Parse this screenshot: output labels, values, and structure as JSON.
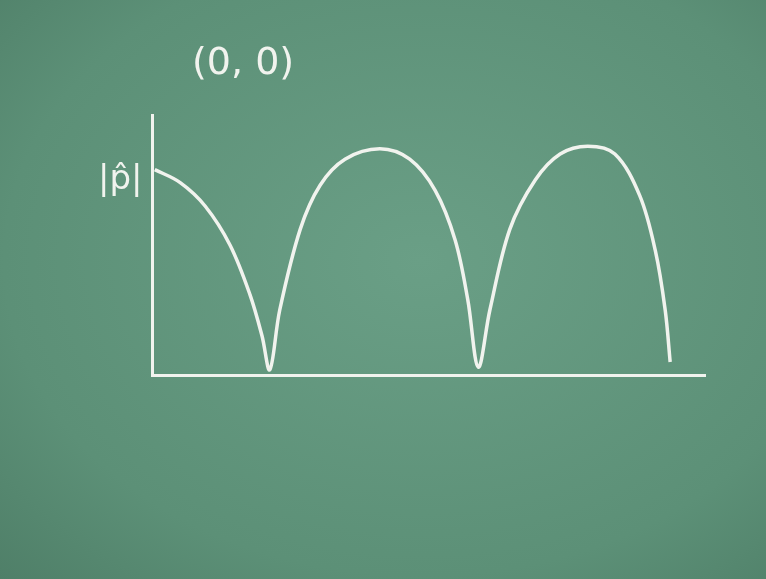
{
  "chart_data": {
    "type": "line",
    "title": "(0, 0)",
    "y_label": "|p̂|",
    "x": [
      0.05,
      0.51,
      0.96,
      1.41,
      1.77,
      1.99,
      2.13,
      2.31,
      2.68,
      3.04,
      3.49,
      4.12,
      4.66,
      5.12,
      5.48,
      5.71,
      5.9,
      6.11,
      6.47,
      6.93,
      7.38,
      7.88,
      8.37,
      8.82,
      9.1,
      9.28,
      9.37
    ],
    "values": [
      0.79,
      0.74,
      0.65,
      0.5,
      0.31,
      0.15,
      0.02,
      0.25,
      0.56,
      0.73,
      0.83,
      0.87,
      0.83,
      0.71,
      0.52,
      0.29,
      0.03,
      0.25,
      0.56,
      0.75,
      0.85,
      0.88,
      0.85,
      0.69,
      0.48,
      0.25,
      0.05
    ],
    "color": "#f1f3ee",
    "xlim": [
      0,
      10
    ],
    "ylim": [
      0,
      1
    ],
    "grid": false,
    "tick_labels": false
  }
}
